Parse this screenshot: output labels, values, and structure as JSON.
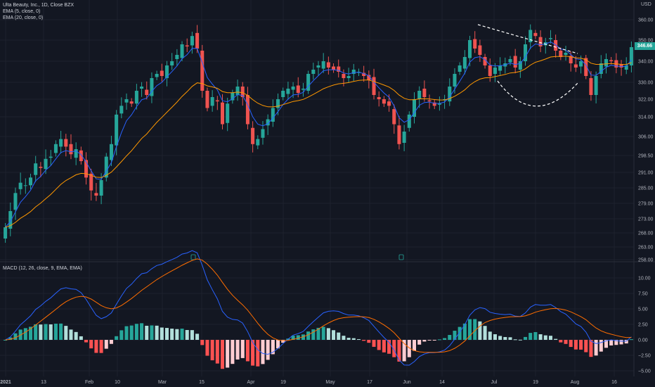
{
  "header": {
    "title": "Ulta Beauty, Inc., 1D, Close BZX",
    "ema5": "EMA (5, close, 0)",
    "ema20": "EMA (20, close, 0)",
    "currency": "USD",
    "last_price": "346.66"
  },
  "macd": {
    "label": "MACD (12, 26, close, 9, EMA, EMA)"
  },
  "colors": {
    "up": "#26a69a",
    "down": "#ef5350",
    "ema5": "#2962ff",
    "ema20": "#ff9800",
    "macd_line": "#2962ff",
    "signal_line": "#ff6d00",
    "hist_up_strong": "#26a69a",
    "hist_up_weak": "#b2dfdb",
    "hist_down_strong": "#ff5252",
    "hist_down_weak": "#ffcdd2"
  },
  "chart_data": [
    {
      "type": "candlestick",
      "title": "Ulta Beauty, Inc., 1D, Close BZX",
      "y_ticks": [
        258.0,
        263.0,
        268.0,
        273.0,
        279.0,
        285.0,
        291.0,
        298.5,
        306.0,
        314.0,
        322.0,
        330.0,
        340.0,
        350.0,
        360.0
      ],
      "x_ticks": [
        "2021",
        "13",
        "Feb",
        "10",
        "Mar",
        "15",
        "Apr",
        "19",
        "May",
        "17",
        "Jun",
        "14",
        "Jul",
        "19",
        "Aug",
        "16"
      ],
      "close": [
        270,
        276,
        283,
        287,
        286,
        289,
        295,
        293,
        297,
        298,
        303,
        305,
        302,
        299,
        301,
        296,
        289,
        284,
        282,
        288,
        298,
        303,
        315,
        319,
        322,
        320,
        326,
        328,
        324,
        332,
        334,
        333,
        338,
        340,
        343,
        348,
        347,
        352,
        346,
        326,
        318,
        323,
        321,
        311,
        320,
        325,
        328,
        323,
        311,
        303,
        305,
        309,
        313,
        318,
        322,
        326,
        327,
        328,
        325,
        327,
        334,
        336,
        338,
        340,
        337,
        336,
        335,
        332,
        333,
        336,
        335,
        333,
        331,
        324,
        322,
        320,
        319,
        311,
        303,
        308,
        315,
        322,
        326,
        323,
        321,
        319,
        320,
        322,
        328,
        334,
        338,
        342,
        350,
        346,
        343,
        338,
        333,
        337,
        338,
        339,
        341,
        337,
        340,
        348,
        355,
        352,
        347,
        349,
        351,
        345,
        342,
        344,
        339,
        337,
        340,
        333,
        324,
        333,
        339,
        341,
        340,
        337,
        337,
        338,
        346.66
      ],
      "series": [
        {
          "name": "EMA (5, close, 0)"
        },
        {
          "name": "EMA (20, close, 0)"
        }
      ]
    },
    {
      "type": "macd",
      "title": "MACD (12, 26, close, 9, EMA, EMA)",
      "y_ticks": [
        -5.0,
        -2.5,
        0.0,
        2.5,
        5.0,
        7.5,
        10.0
      ],
      "ylim": [
        -5.5,
        11
      ]
    }
  ]
}
